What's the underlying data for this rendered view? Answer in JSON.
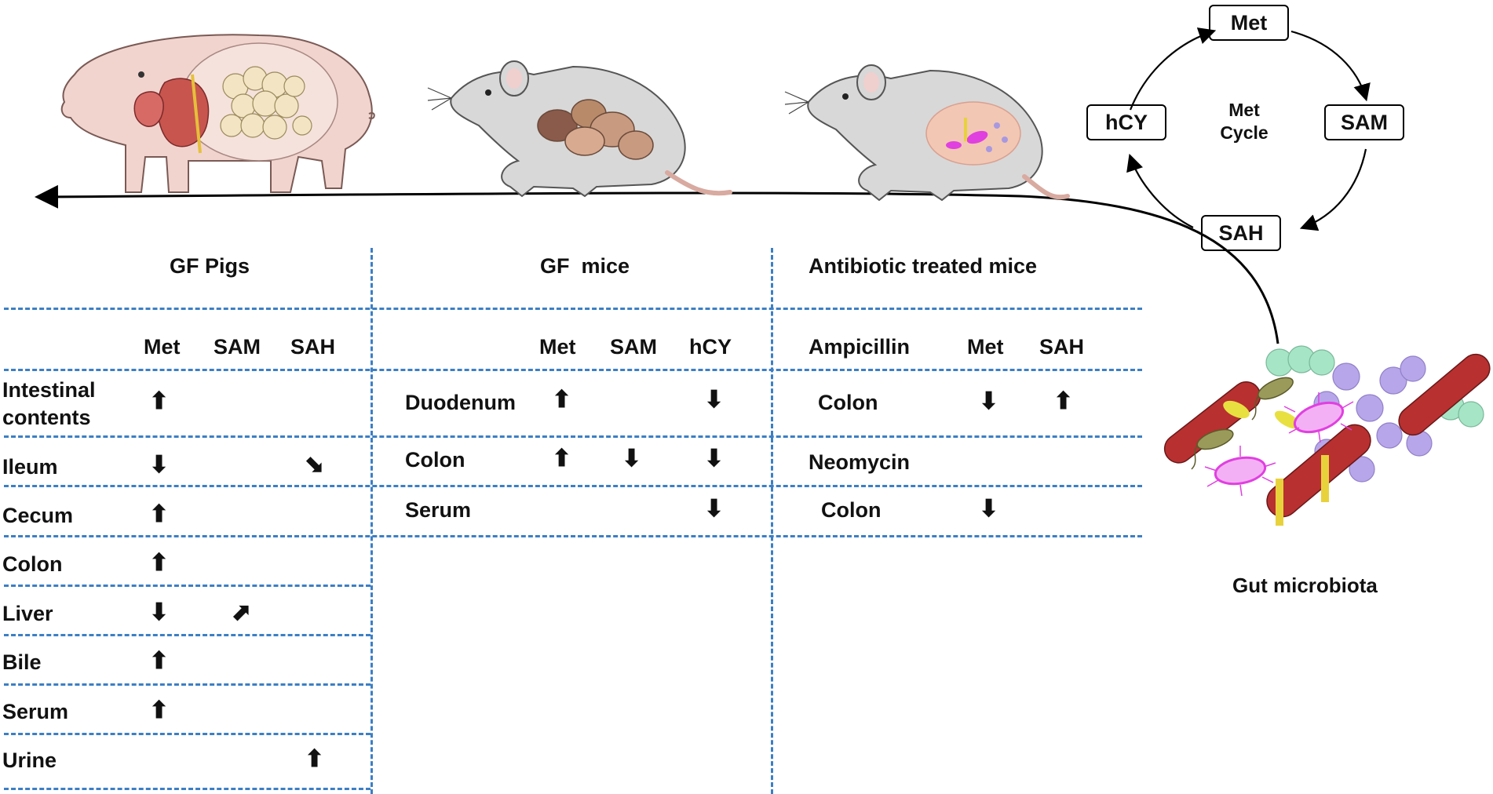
{
  "met_cycle": {
    "nodes": {
      "met": "Met",
      "sam": "SAM",
      "sah": "SAH",
      "hcy": "hCY"
    },
    "center_line1": "Met",
    "center_line2": "Cycle"
  },
  "microbiota_label": "Gut microbiota",
  "gf_pigs": {
    "title": "GF Pigs",
    "columns": [
      "Met",
      "SAM",
      "SAH"
    ],
    "rows": [
      {
        "label_line1": "Intestinal",
        "label_line2": "contents",
        "changes": [
          "up",
          "",
          ""
        ]
      },
      {
        "label": "Ileum",
        "changes": [
          "down",
          "",
          "down-right"
        ]
      },
      {
        "label": "Cecum",
        "changes": [
          "up",
          "",
          ""
        ]
      },
      {
        "label": "Colon",
        "changes": [
          "up",
          "",
          ""
        ]
      },
      {
        "label": "Liver",
        "changes": [
          "down",
          "up-right",
          ""
        ]
      },
      {
        "label": "Bile",
        "changes": [
          "up",
          "",
          ""
        ]
      },
      {
        "label": "Serum",
        "changes": [
          "up",
          "",
          ""
        ]
      },
      {
        "label": "Urine",
        "changes": [
          "",
          "",
          "up"
        ]
      }
    ]
  },
  "gf_mice": {
    "title": "GF  mice",
    "columns": [
      "Met",
      "SAM",
      "hCY"
    ],
    "rows": [
      {
        "label": "Duodenum",
        "changes": [
          "up",
          "",
          "down"
        ]
      },
      {
        "label": "Colon",
        "changes": [
          "up",
          "down",
          "down"
        ]
      },
      {
        "label": "Serum",
        "changes": [
          "",
          "",
          "down"
        ]
      }
    ]
  },
  "abx_mice": {
    "title": "Antibiotic treated mice",
    "columns": [
      "Ampicillin",
      "Met",
      "SAH"
    ],
    "rows": [
      {
        "label": "Colon",
        "changes": [
          "down",
          "up"
        ]
      },
      {
        "label": "Neomycin",
        "changes": [
          "",
          ""
        ]
      },
      {
        "label": "Colon",
        "changes": [
          "down",
          ""
        ]
      }
    ]
  },
  "colors": {
    "divider": "#3c7fc4",
    "animal_fill": "#d8d8d8",
    "pig_fill": "#f2d4cf",
    "bacteria_red": "#b83030",
    "bacteria_purple": "#b8a6ea",
    "bacteria_green": "#a6e6c6",
    "bacteria_magenta": "#e040e0",
    "bacteria_yellow": "#e8d23c"
  }
}
